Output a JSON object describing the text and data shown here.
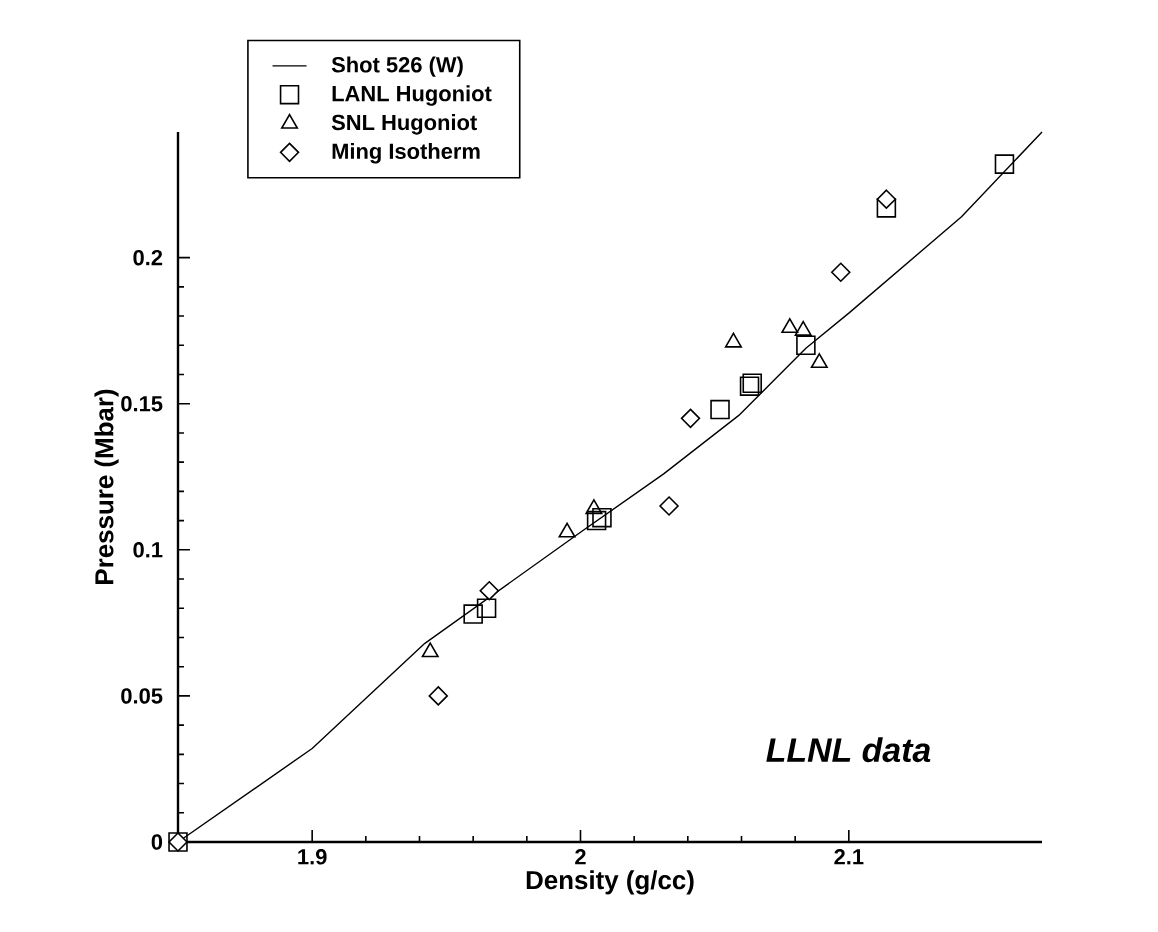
{
  "chart_data": {
    "type": "scatter",
    "xlabel": "Density (g/cc)",
    "ylabel": "Pressure (Mbar)",
    "xlim": [
      1.85,
      2.172
    ],
    "ylim": [
      0,
      0.243
    ],
    "xticks": [
      1.9,
      2,
      2.1
    ],
    "yticks": [
      0,
      0.05,
      0.1,
      0.15,
      0.2
    ],
    "legend": "top left",
    "grid": false,
    "annotations": [
      "LLNL data"
    ],
    "series": [
      {
        "name": "Shot 526 (W)",
        "type": "line",
        "marker": "none",
        "line_style": "solid",
        "color": "#000000",
        "x": [
          1.85,
          1.9,
          1.942,
          2.0,
          2.031,
          2.059,
          2.084,
          2.1,
          2.142,
          2.172
        ],
        "values": [
          0,
          0.032,
          0.068,
          0.106,
          0.126,
          0.146,
          0.169,
          0.181,
          0.214,
          0.243
        ]
      },
      {
        "name": "LANL Hugoniot",
        "marker": "square",
        "color": "#000000",
        "x": [
          1.96,
          1.965,
          2.006,
          2.008,
          2.052,
          2.063,
          2.064,
          2.084,
          2.114,
          2.158,
          1.85
        ],
        "values": [
          0.078,
          0.08,
          0.11,
          0.111,
          0.148,
          0.156,
          0.157,
          0.17,
          0.217,
          0.232,
          0
        ]
      },
      {
        "name": "SNL Hugoniot",
        "marker": "triangle",
        "color": "#000000",
        "x": [
          1.944,
          1.995,
          2.005,
          2.057,
          2.078,
          2.083,
          2.089
        ],
        "values": [
          0.065,
          0.106,
          0.114,
          0.171,
          0.176,
          0.175,
          0.164
        ]
      },
      {
        "name": "Ming Isotherm",
        "marker": "diamond",
        "color": "#000000",
        "x": [
          1.947,
          1.966,
          2.033,
          2.041,
          2.097,
          2.114,
          1.85
        ],
        "values": [
          0.05,
          0.086,
          0.115,
          0.145,
          0.195,
          0.22,
          0
        ]
      }
    ]
  }
}
